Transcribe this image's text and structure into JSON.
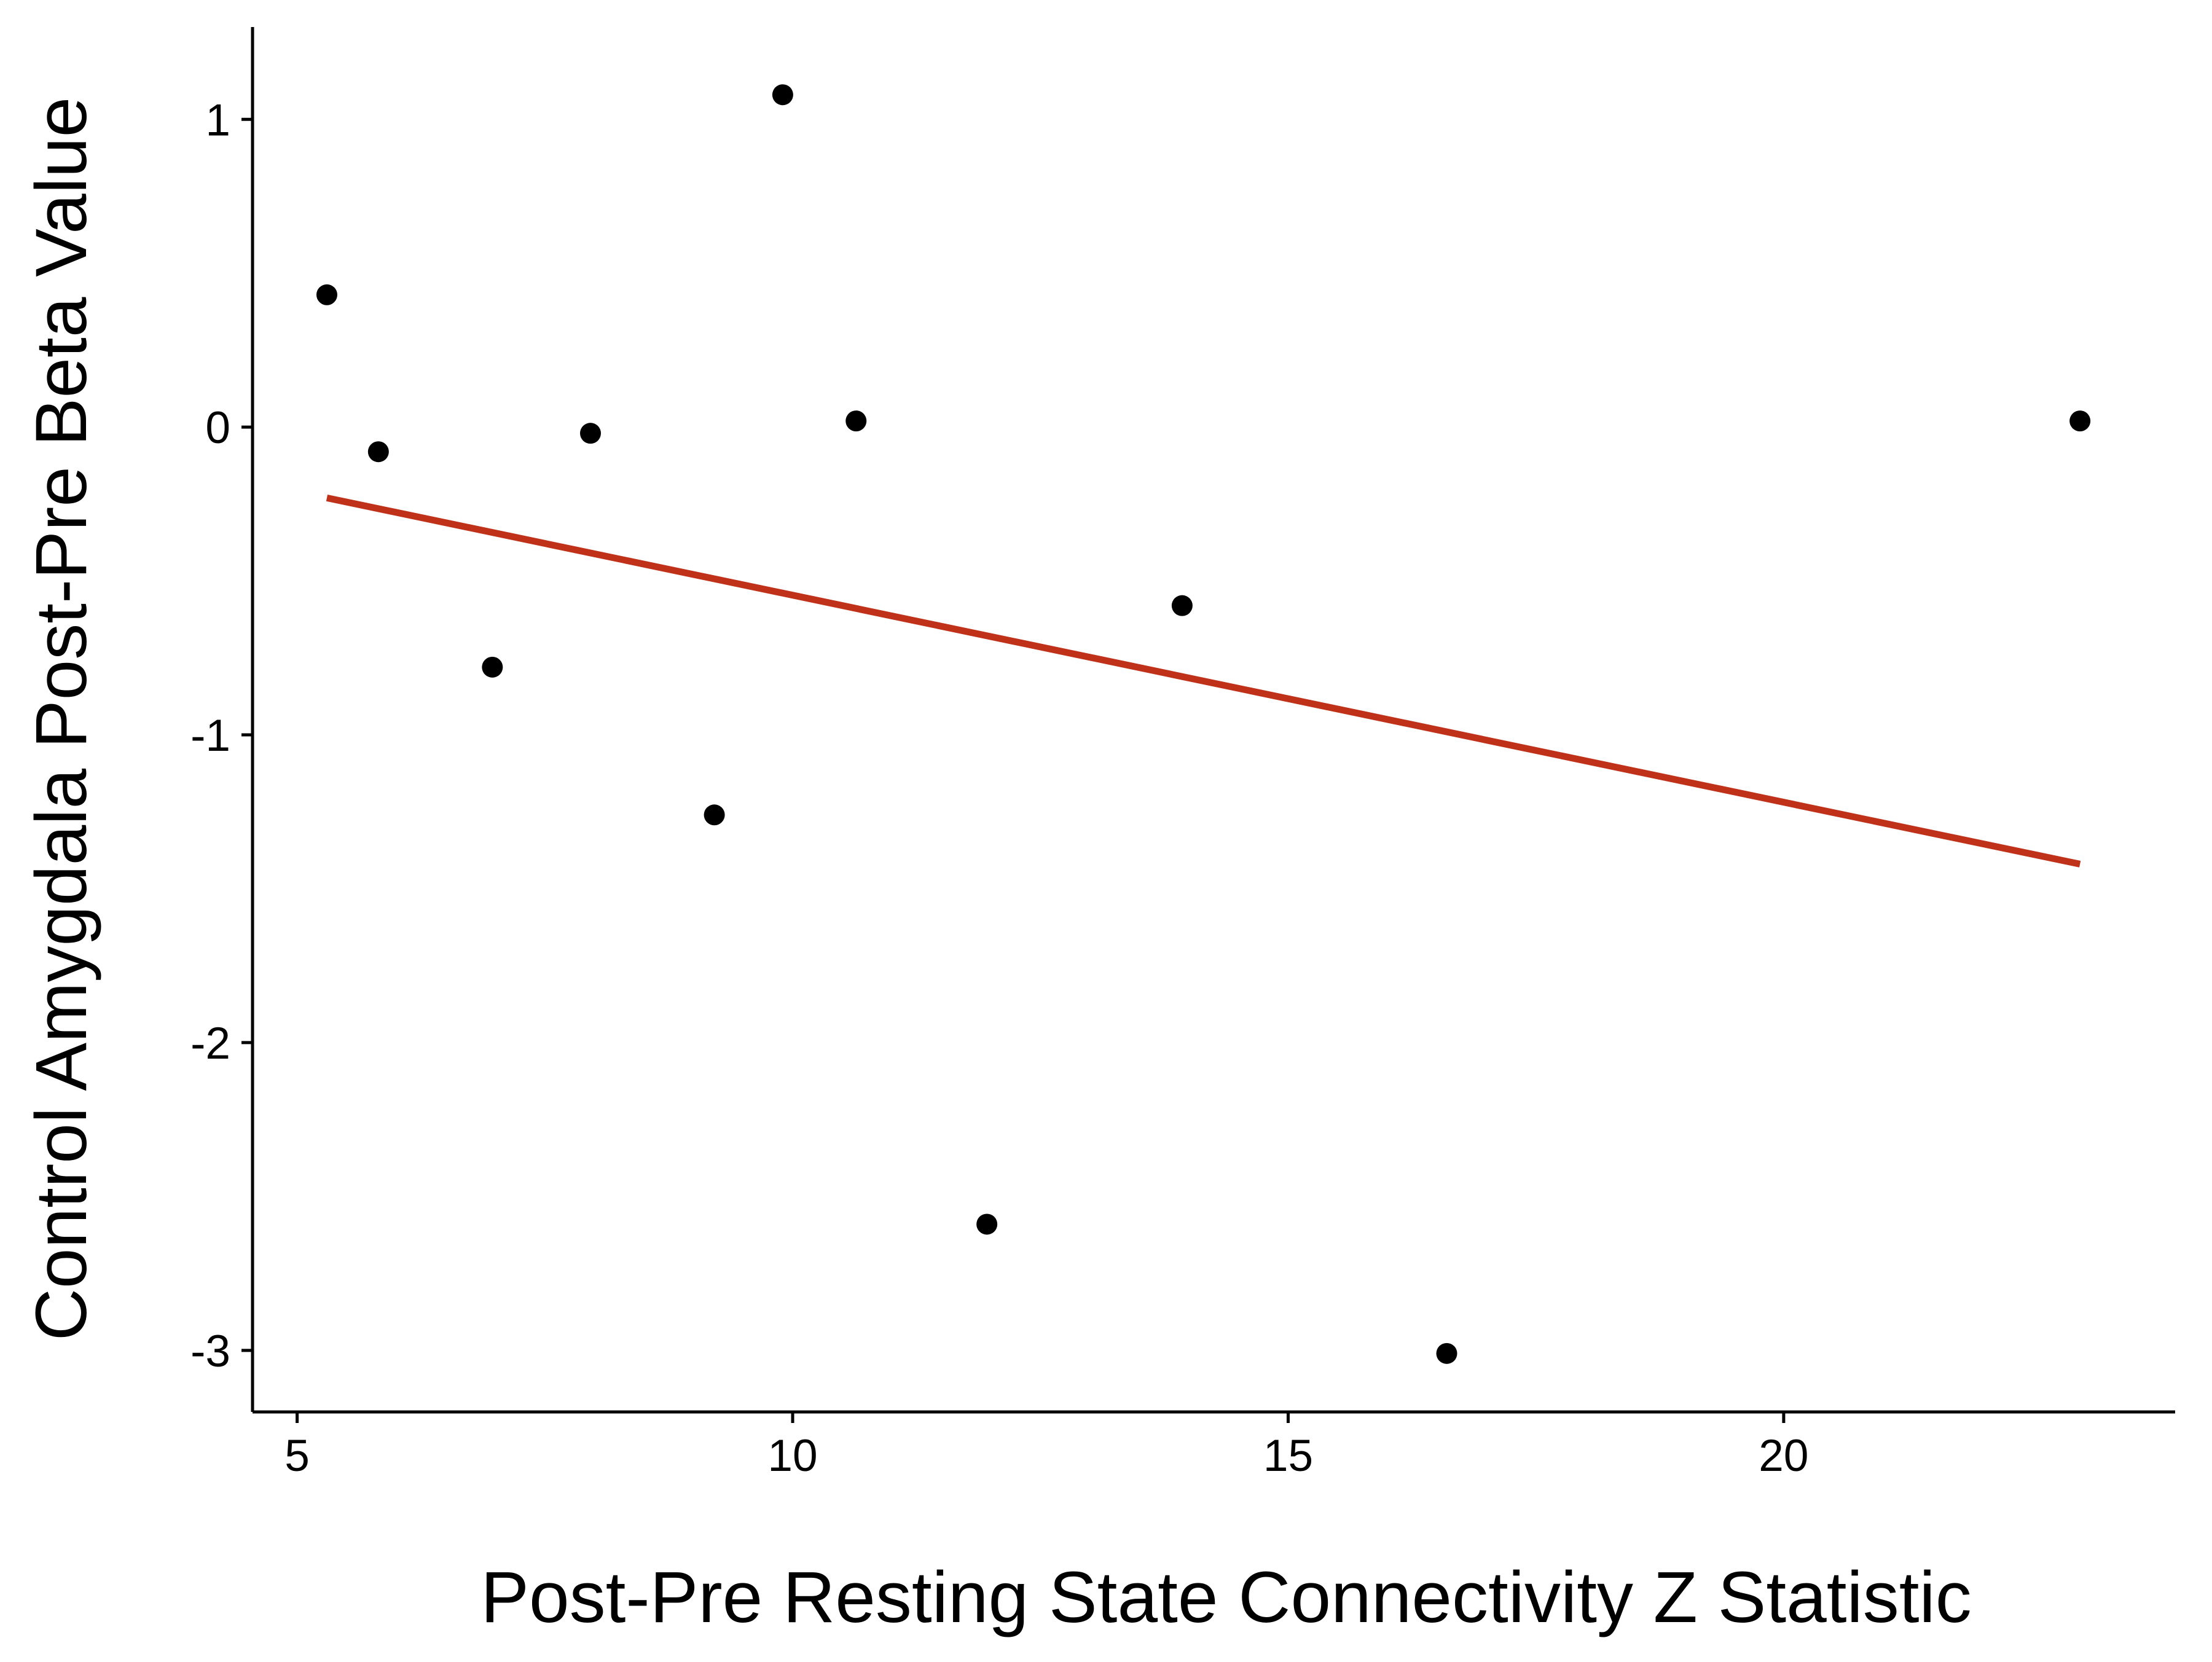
{
  "chart_data": {
    "type": "scatter",
    "title": "",
    "xlabel": "Post-Pre Resting State Connectivity Z Statistic",
    "ylabel": "Control Amygdala Post-Pre Beta Value",
    "xlim": [
      4.55,
      23.95
    ],
    "ylim": [
      -3.2,
      1.3
    ],
    "x_ticks": [
      5,
      10,
      15,
      20
    ],
    "y_ticks": [
      1,
      0,
      -1,
      -2,
      -3
    ],
    "x_tick_labels": [
      "5",
      "10",
      "15",
      "20"
    ],
    "y_tick_labels": [
      "1",
      "0",
      "-1",
      "-2",
      "-3"
    ],
    "grid": false,
    "legend": "none",
    "series": [
      {
        "points": [
          {
            "x": 5.3,
            "y": 0.43
          },
          {
            "x": 5.82,
            "y": -0.08
          },
          {
            "x": 6.97,
            "y": -0.78
          },
          {
            "x": 7.96,
            "y": -0.02
          },
          {
            "x": 9.21,
            "y": -1.26
          },
          {
            "x": 9.9,
            "y": 1.08
          },
          {
            "x": 10.64,
            "y": 0.02
          },
          {
            "x": 11.96,
            "y": -2.59
          },
          {
            "x": 13.93,
            "y": -0.58
          },
          {
            "x": 16.6,
            "y": -3.01
          },
          {
            "x": 22.99,
            "y": 0.02
          }
        ],
        "color": "#000000"
      }
    ],
    "trendline": {
      "x": [
        5.3,
        22.99
      ],
      "y": [
        -0.23,
        -1.42
      ],
      "color": "#c0311a"
    },
    "axis_color": "#000000"
  }
}
